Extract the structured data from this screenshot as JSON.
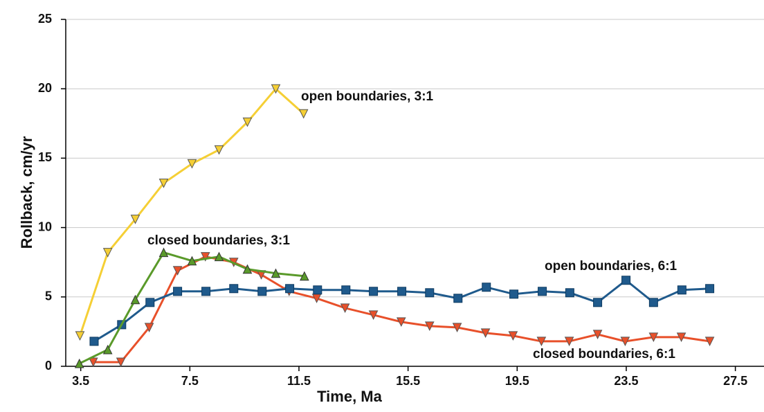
{
  "chart_data": {
    "type": "line",
    "x_label": "Time, Ma",
    "y_label": "Rollback, cm/yr",
    "xlim": [
      2.95,
      28.55
    ],
    "xticks": [
      3.5,
      7.5,
      11.5,
      15.5,
      19.5,
      23.5,
      27.5
    ],
    "ylim": [
      0,
      25
    ],
    "yticks": [
      0,
      5,
      10,
      15,
      20,
      25
    ],
    "grid": true,
    "series": [
      {
        "name": "closed boundaries, 6:1",
        "color": "#e8502a",
        "marker": "triangle-down",
        "x": [
          3.96,
          4.97,
          6.01,
          7.05,
          8.07,
          9.11,
          10.12,
          11.14,
          12.15,
          13.19,
          14.23,
          15.25,
          16.29,
          17.3,
          18.34,
          19.35,
          20.39,
          21.41,
          22.45,
          23.46,
          24.5,
          25.52,
          26.56
        ],
        "values": [
          0.3,
          0.3,
          2.8,
          6.9,
          7.9,
          7.5,
          6.6,
          5.4,
          4.9,
          4.2,
          3.7,
          3.2,
          2.9,
          2.8,
          2.4,
          2.2,
          1.8,
          1.8,
          2.3,
          1.8,
          2.1,
          2.1,
          1.8
        ]
      },
      {
        "name": "open boundaries, 6:1",
        "color": "#1f5a8c",
        "marker": "square",
        "x": [
          3.99,
          5.0,
          6.04,
          7.05,
          8.09,
          9.11,
          10.15,
          11.16,
          12.18,
          13.22,
          14.23,
          15.27,
          16.29,
          17.33,
          18.37,
          19.38,
          20.42,
          21.43,
          22.45,
          23.49,
          24.5,
          25.54,
          26.56
        ],
        "values": [
          1.8,
          3.0,
          4.6,
          5.4,
          5.4,
          5.6,
          5.4,
          5.6,
          5.5,
          5.5,
          5.4,
          5.4,
          5.3,
          4.9,
          5.7,
          5.2,
          5.4,
          5.3,
          4.6,
          6.2,
          4.6,
          5.5,
          5.6
        ]
      },
      {
        "name": "open boundaries, 3:1",
        "color": "#f5cf35",
        "marker": "triangle-down",
        "x": [
          3.47,
          4.49,
          5.5,
          6.54,
          7.58,
          8.57,
          9.61,
          10.65,
          11.67
        ],
        "values": [
          2.2,
          8.2,
          10.6,
          13.2,
          14.6,
          15.6,
          17.6,
          20.0,
          18.2
        ]
      },
      {
        "name": "closed boundaries, 3:1",
        "color": "#5a9a2a",
        "marker": "triangle-up",
        "x": [
          3.45,
          4.49,
          5.5,
          6.54,
          7.58,
          8.57,
          9.61,
          10.65,
          11.7
        ],
        "values": [
          0.2,
          1.2,
          4.8,
          8.2,
          7.6,
          7.9,
          7.0,
          6.7,
          6.5
        ]
      }
    ]
  }
}
